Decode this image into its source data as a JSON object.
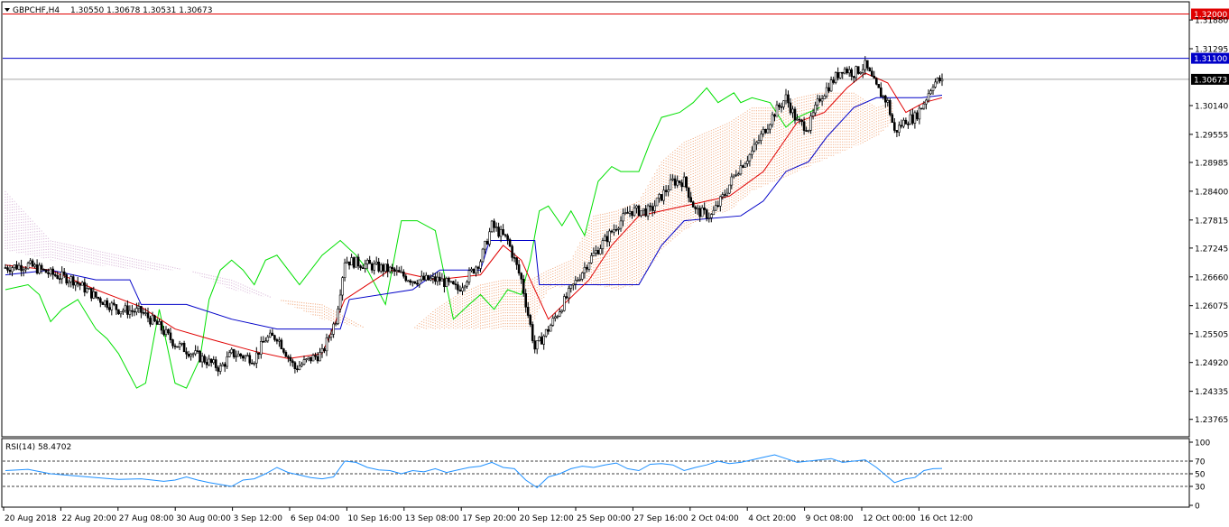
{
  "chart_data": {
    "type": "candlestick",
    "symbol": "GBPCHF,H4",
    "ohlc_header": [
      "1.30550",
      "1.30678",
      "1.30531",
      "1.30673"
    ],
    "y_ticks": [
      "1.31880",
      "1.31295",
      "1.30140",
      "1.29555",
      "1.28985",
      "1.28400",
      "1.27815",
      "1.27245",
      "1.26660",
      "1.26075",
      "1.25505",
      "1.24920",
      "1.24335",
      "1.23765"
    ],
    "ylim": [
      1.2343,
      1.3223
    ],
    "price_lines": [
      {
        "label": "1.32000",
        "value": 1.32,
        "color": "#e00000"
      },
      {
        "label": "1.31100",
        "value": 1.311,
        "color": "#0000c8"
      },
      {
        "label": "1.30673",
        "value": 1.30673,
        "color": "#000000"
      }
    ],
    "x_labels": [
      "20 Aug 2018",
      "22 Aug 20:00",
      "27 Aug 08:00",
      "30 Aug 00:00",
      "3 Sep 12:00",
      "6 Sep 04:00",
      "10 Sep 16:00",
      "13 Sep 08:00",
      "17 Sep 20:00",
      "20 Sep 12:00",
      "25 Sep 00:00",
      "27 Sep 16:00",
      "2 Oct 04:00",
      "4 Oct 20:00",
      "9 Oct 08:00",
      "12 Oct 00:00",
      "16 Oct 12:00"
    ],
    "close_path": [
      [
        0,
        1.2685
      ],
      [
        10,
        1.269
      ],
      [
        20,
        1.2672
      ],
      [
        30,
        1.266
      ],
      [
        40,
        1.2625
      ],
      [
        50,
        1.26
      ],
      [
        60,
        1.2595
      ],
      [
        68,
        1.2565
      ],
      [
        75,
        1.253
      ],
      [
        85,
        1.2505
      ],
      [
        95,
        1.248
      ],
      [
        100,
        1.251
      ],
      [
        110,
        1.25
      ],
      [
        115,
        1.254
      ],
      [
        120,
        1.2545
      ],
      [
        128,
        1.248
      ],
      [
        135,
        1.25
      ],
      [
        140,
        1.251
      ],
      [
        146,
        1.258
      ],
      [
        150,
        1.27
      ],
      [
        160,
        1.269
      ],
      [
        170,
        1.268
      ],
      [
        180,
        1.266
      ],
      [
        192,
        1.266
      ],
      [
        200,
        1.264
      ],
      [
        210,
        1.27
      ],
      [
        215,
        1.277
      ],
      [
        222,
        1.274
      ],
      [
        228,
        1.266
      ],
      [
        234,
        1.252
      ],
      [
        240,
        1.256
      ],
      [
        250,
        1.264
      ],
      [
        258,
        1.27
      ],
      [
        265,
        1.274
      ],
      [
        270,
        1.277
      ],
      [
        276,
        1.28
      ],
      [
        285,
        1.28
      ],
      [
        295,
        1.286
      ],
      [
        300,
        1.286
      ],
      [
        305,
        1.28
      ],
      [
        312,
        1.279
      ],
      [
        318,
        1.2835
      ],
      [
        323,
        1.288
      ],
      [
        330,
        1.292
      ],
      [
        335,
        1.296
      ],
      [
        340,
        1.3
      ],
      [
        345,
        1.303
      ],
      [
        350,
        1.298
      ],
      [
        355,
        1.297
      ],
      [
        360,
        1.303
      ],
      [
        365,
        1.306
      ],
      [
        370,
        1.309
      ],
      [
        375,
        1.308
      ],
      [
        380,
        1.3095
      ],
      [
        385,
        1.305
      ],
      [
        390,
        1.302
      ],
      [
        393,
        1.296
      ],
      [
        398,
        1.2985
      ],
      [
        402,
        1.299
      ],
      [
        406,
        1.302
      ],
      [
        410,
        1.306
      ],
      [
        414,
        1.3067
      ]
    ],
    "tenkan_path": [
      [
        0,
        1.269
      ],
      [
        20,
        1.268
      ],
      [
        40,
        1.264
      ],
      [
        60,
        1.2605
      ],
      [
        75,
        1.256
      ],
      [
        90,
        1.254
      ],
      [
        110,
        1.2515
      ],
      [
        125,
        1.25
      ],
      [
        140,
        1.251
      ],
      [
        150,
        1.262
      ],
      [
        170,
        1.268
      ],
      [
        190,
        1.266
      ],
      [
        210,
        1.267
      ],
      [
        220,
        1.273
      ],
      [
        228,
        1.27
      ],
      [
        240,
        1.258
      ],
      [
        258,
        1.266
      ],
      [
        268,
        1.273
      ],
      [
        280,
        1.279
      ],
      [
        300,
        1.281
      ],
      [
        320,
        1.283
      ],
      [
        335,
        1.288
      ],
      [
        350,
        1.298
      ],
      [
        362,
        1.3
      ],
      [
        372,
        1.305
      ],
      [
        380,
        1.308
      ],
      [
        390,
        1.306
      ],
      [
        398,
        1.3
      ],
      [
        406,
        1.302
      ],
      [
        414,
        1.303
      ]
    ],
    "kijun_path": [
      [
        0,
        1.267
      ],
      [
        20,
        1.268
      ],
      [
        40,
        1.266
      ],
      [
        55,
        1.266
      ],
      [
        60,
        1.261
      ],
      [
        80,
        1.261
      ],
      [
        100,
        1.258
      ],
      [
        120,
        1.256
      ],
      [
        148,
        1.256
      ],
      [
        152,
        1.262
      ],
      [
        180,
        1.264
      ],
      [
        192,
        1.268
      ],
      [
        210,
        1.268
      ],
      [
        214,
        1.274
      ],
      [
        234,
        1.274
      ],
      [
        236,
        1.265
      ],
      [
        280,
        1.265
      ],
      [
        285,
        1.269
      ],
      [
        290,
        1.273
      ],
      [
        300,
        1.278
      ],
      [
        325,
        1.279
      ],
      [
        335,
        1.282
      ],
      [
        345,
        1.288
      ],
      [
        355,
        1.29
      ],
      [
        363,
        1.295
      ],
      [
        375,
        1.301
      ],
      [
        385,
        1.303
      ],
      [
        405,
        1.303
      ],
      [
        414,
        1.3035
      ]
    ],
    "chikou_path": [
      [
        0,
        1.264
      ],
      [
        10,
        1.265
      ],
      [
        15,
        1.263
      ],
      [
        20,
        1.2575
      ],
      [
        25,
        1.26
      ],
      [
        32,
        1.262
      ],
      [
        40,
        1.256
      ],
      [
        45,
        1.254
      ],
      [
        50,
        1.251
      ],
      [
        58,
        1.244
      ],
      [
        62,
        1.245
      ],
      [
        68,
        1.26
      ],
      [
        75,
        1.245
      ],
      [
        80,
        1.244
      ],
      [
        86,
        1.25
      ],
      [
        90,
        1.262
      ],
      [
        95,
        1.268
      ],
      [
        100,
        1.27
      ],
      [
        105,
        1.268
      ],
      [
        110,
        1.265
      ],
      [
        115,
        1.27
      ],
      [
        120,
        1.271
      ],
      [
        130,
        1.265
      ],
      [
        140,
        1.271
      ],
      [
        148,
        1.274
      ],
      [
        155,
        1.271
      ],
      [
        160,
        1.268
      ],
      [
        168,
        1.261
      ],
      [
        175,
        1.278
      ],
      [
        182,
        1.278
      ],
      [
        190,
        1.276
      ],
      [
        198,
        1.258
      ],
      [
        205,
        1.261
      ],
      [
        210,
        1.263
      ],
      [
        216,
        1.26
      ],
      [
        222,
        1.264
      ],
      [
        228,
        1.263
      ],
      [
        232,
        1.27
      ],
      [
        236,
        1.28
      ],
      [
        240,
        1.281
      ],
      [
        246,
        1.277
      ],
      [
        250,
        1.28
      ],
      [
        256,
        1.275
      ],
      [
        262,
        1.286
      ],
      [
        268,
        1.289
      ],
      [
        272,
        1.288
      ],
      [
        280,
        1.288
      ],
      [
        285,
        1.294
      ],
      [
        290,
        1.299
      ],
      [
        298,
        1.3
      ],
      [
        304,
        1.302
      ],
      [
        310,
        1.305
      ],
      [
        315,
        1.302
      ],
      [
        322,
        1.304
      ],
      [
        325,
        1.302
      ],
      [
        330,
        1.303
      ],
      [
        338,
        1.302
      ],
      [
        345,
        1.297
      ],
      [
        350,
        1.299
      ],
      [
        360,
        1.301
      ]
    ],
    "cloud_a": [
      [
        0,
        1.272
      ],
      [
        20,
        1.27
      ],
      [
        40,
        1.269
      ],
      [
        60,
        1.268
      ],
      [
        80,
        1.268
      ],
      [
        100,
        1.264
      ],
      [
        120,
        1.262
      ],
      [
        140,
        1.261
      ],
      [
        160,
        1.256
      ],
      [
        180,
        1.256
      ],
      [
        190,
        1.26
      ],
      [
        200,
        1.263
      ],
      [
        210,
        1.265
      ],
      [
        220,
        1.266
      ],
      [
        232,
        1.266
      ],
      [
        240,
        1.268
      ],
      [
        250,
        1.27
      ],
      [
        260,
        1.279
      ],
      [
        270,
        1.28
      ],
      [
        280,
        1.282
      ],
      [
        290,
        1.29
      ],
      [
        300,
        1.294
      ],
      [
        310,
        1.296
      ],
      [
        320,
        1.298
      ],
      [
        330,
        1.301
      ],
      [
        340,
        1.301
      ],
      [
        350,
        1.303
      ],
      [
        360,
        1.304
      ],
      [
        375,
        1.304
      ],
      [
        385,
        1.301
      ],
      [
        392,
        1.302
      ]
    ],
    "cloud_b": [
      [
        0,
        1.284
      ],
      [
        20,
        1.274
      ],
      [
        40,
        1.272
      ],
      [
        60,
        1.27
      ],
      [
        80,
        1.268
      ],
      [
        100,
        1.266
      ],
      [
        120,
        1.262
      ],
      [
        140,
        1.258
      ],
      [
        160,
        1.256
      ],
      [
        180,
        1.256
      ],
      [
        200,
        1.256
      ],
      [
        220,
        1.256
      ],
      [
        232,
        1.256
      ],
      [
        240,
        1.264
      ],
      [
        250,
        1.265
      ],
      [
        255,
        1.265
      ],
      [
        260,
        1.265
      ],
      [
        270,
        1.264
      ],
      [
        280,
        1.265
      ],
      [
        290,
        1.272
      ],
      [
        300,
        1.276
      ],
      [
        310,
        1.279
      ],
      [
        320,
        1.28
      ],
      [
        330,
        1.284
      ],
      [
        340,
        1.286
      ],
      [
        350,
        1.288
      ],
      [
        360,
        1.29
      ],
      [
        375,
        1.293
      ],
      [
        385,
        1.295
      ],
      [
        392,
        1.298
      ]
    ],
    "rsi": {
      "label": "RSI(14) 58.4702",
      "levels": [
        70,
        50,
        30
      ],
      "ticks": [
        "100",
        "70",
        "50",
        "30",
        "0"
      ],
      "ylim": [
        0,
        100
      ],
      "path": [
        [
          0,
          55
        ],
        [
          10,
          57
        ],
        [
          20,
          50
        ],
        [
          30,
          47
        ],
        [
          40,
          44
        ],
        [
          50,
          41
        ],
        [
          60,
          42
        ],
        [
          70,
          38
        ],
        [
          75,
          40
        ],
        [
          80,
          45
        ],
        [
          85,
          40
        ],
        [
          90,
          36
        ],
        [
          95,
          33
        ],
        [
          100,
          30
        ],
        [
          105,
          40
        ],
        [
          110,
          42
        ],
        [
          115,
          50
        ],
        [
          120,
          60
        ],
        [
          125,
          52
        ],
        [
          130,
          48
        ],
        [
          135,
          44
        ],
        [
          140,
          42
        ],
        [
          145,
          45
        ],
        [
          150,
          70
        ],
        [
          155,
          68
        ],
        [
          160,
          60
        ],
        [
          165,
          56
        ],
        [
          170,
          55
        ],
        [
          175,
          50
        ],
        [
          180,
          55
        ],
        [
          185,
          53
        ],
        [
          190,
          58
        ],
        [
          195,
          52
        ],
        [
          200,
          56
        ],
        [
          205,
          60
        ],
        [
          210,
          62
        ],
        [
          215,
          68
        ],
        [
          220,
          60
        ],
        [
          225,
          58
        ],
        [
          230,
          40
        ],
        [
          235,
          28
        ],
        [
          240,
          45
        ],
        [
          245,
          50
        ],
        [
          250,
          58
        ],
        [
          255,
          62
        ],
        [
          260,
          60
        ],
        [
          265,
          64
        ],
        [
          270,
          67
        ],
        [
          275,
          58
        ],
        [
          280,
          55
        ],
        [
          285,
          65
        ],
        [
          290,
          66
        ],
        [
          295,
          64
        ],
        [
          300,
          55
        ],
        [
          305,
          60
        ],
        [
          310,
          64
        ],
        [
          315,
          70
        ],
        [
          320,
          66
        ],
        [
          325,
          68
        ],
        [
          330,
          72
        ],
        [
          335,
          76
        ],
        [
          340,
          80
        ],
        [
          345,
          74
        ],
        [
          350,
          68
        ],
        [
          355,
          70
        ],
        [
          360,
          72
        ],
        [
          365,
          74
        ],
        [
          370,
          68
        ],
        [
          375,
          70
        ],
        [
          380,
          72
        ],
        [
          385,
          60
        ],
        [
          390,
          45
        ],
        [
          393,
          36
        ],
        [
          398,
          42
        ],
        [
          402,
          44
        ],
        [
          406,
          55
        ],
        [
          410,
          58
        ],
        [
          414,
          58.47
        ]
      ]
    },
    "colors": {
      "bull": "#ffffff",
      "bear": "#000000",
      "tenkan": "#e00000",
      "kijun": "#0000c8",
      "chikou": "#00e000",
      "cloud_bull": "#f0a070",
      "cloud_bear": "#d4b0d4",
      "rsi_line": "#1e90ff"
    }
  }
}
